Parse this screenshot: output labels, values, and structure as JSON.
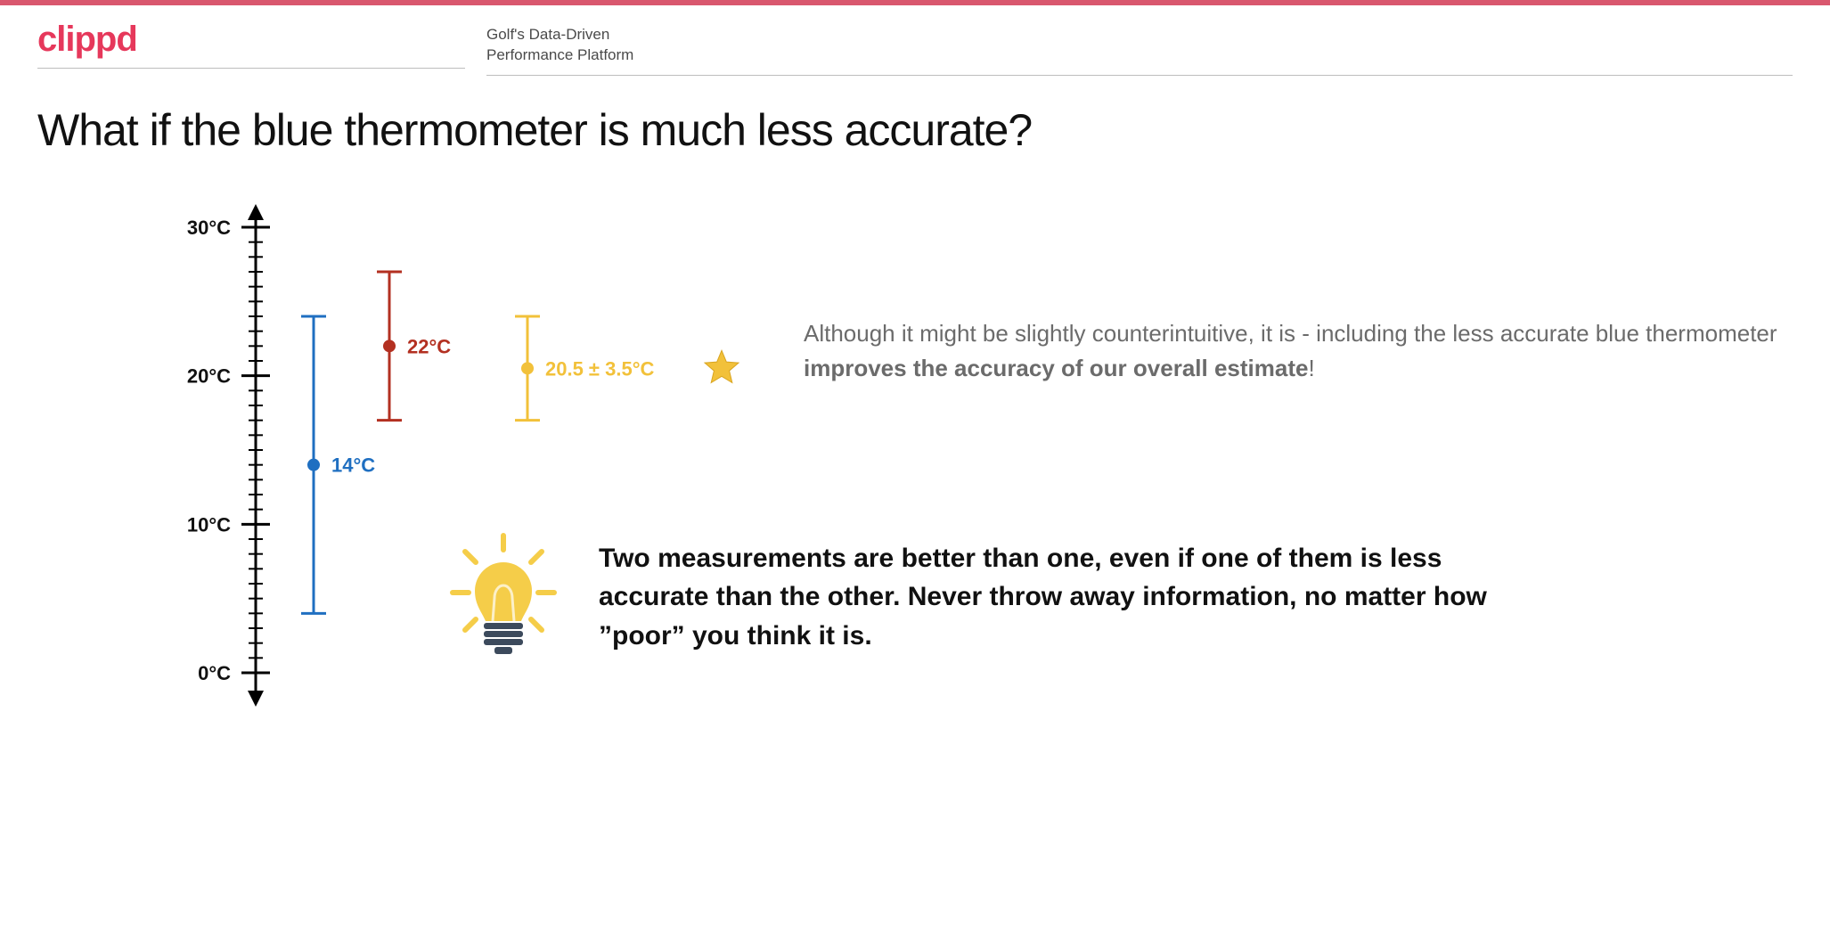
{
  "brand": {
    "logo_text": "clippd",
    "logo_color": "#e6385b",
    "tagline_line1": "Golf's Data-Driven",
    "tagline_line2": "Performance Platform",
    "topbar_color": "#d9576e"
  },
  "title": "What if the blue thermometer is much less accurate?",
  "chart": {
    "type": "errorbar",
    "axis": {
      "ymin": 0,
      "ymax": 30,
      "ytick_major_step": 10,
      "ytick_minor_step": 1,
      "labels": {
        "30": "30°C",
        "20": "20°C",
        "10": "10°C",
        "0": "0°C"
      },
      "color": "#000000",
      "label_fontsize": 22
    },
    "series": [
      {
        "id": "blue",
        "value": 14,
        "err_low": 4,
        "err_high": 24,
        "color": "#1f6fc1",
        "label": "14°C",
        "x": 310
      },
      {
        "id": "red",
        "value": 22,
        "err_low": 17,
        "err_high": 27,
        "color": "#b33021",
        "label": "22°C",
        "x": 395
      },
      {
        "id": "yellow",
        "value": 20.5,
        "err_low": 17,
        "err_high": 24,
        "color": "#f2c13a",
        "label": "20.5 ± 3.5°C",
        "x": 550
      }
    ],
    "star_color": "#f2c13a",
    "line_width": 3,
    "marker_radius": 7,
    "cap_halfwidth": 14
  },
  "explanation": {
    "pre": "Although it might be slightly counterintuitive, it is - including the less accurate blue thermometer ",
    "bold": "improves the accuracy of our overall estimate",
    "post": "!"
  },
  "insight": {
    "text": "Two measurements are better than one, even if one of them is less accurate than the other. Never throw away information, no matter how ”poor” you think it is.",
    "bulb_body": "#f5cd49",
    "bulb_base": "#3c4a5c",
    "bulb_ray": "#f5cd49"
  }
}
